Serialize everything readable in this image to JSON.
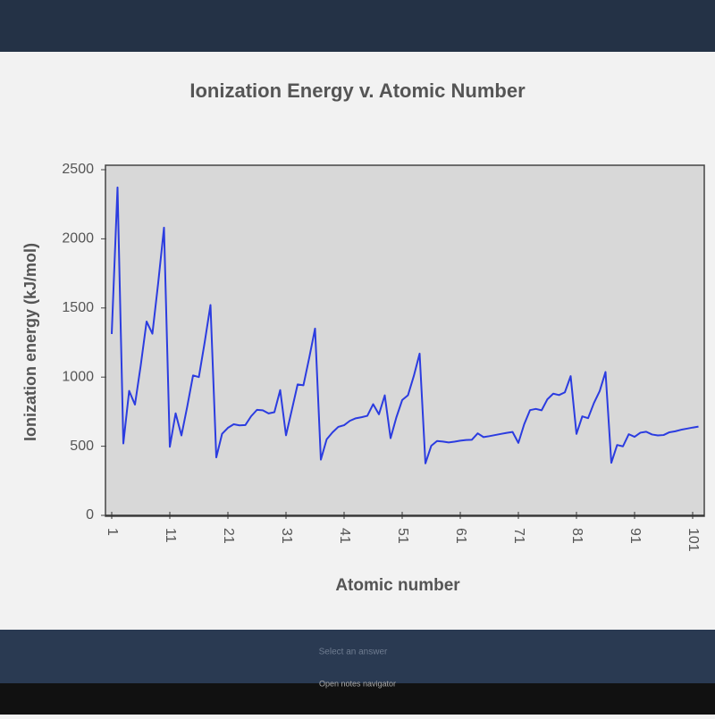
{
  "chart_data": {
    "type": "line",
    "title": "Ionization Energy v. Atomic Number",
    "x_label": "Atomic number",
    "y_label": "Ionization energy (kJ/mol)",
    "x": [
      1,
      2,
      3,
      4,
      5,
      6,
      7,
      8,
      9,
      10,
      11,
      12,
      13,
      14,
      15,
      16,
      17,
      18,
      19,
      20,
      21,
      22,
      23,
      24,
      25,
      26,
      27,
      28,
      29,
      30,
      31,
      32,
      33,
      34,
      35,
      36,
      37,
      38,
      39,
      40,
      41,
      42,
      43,
      44,
      45,
      46,
      47,
      48,
      49,
      50,
      51,
      52,
      53,
      54,
      55,
      56,
      57,
      58,
      59,
      60,
      61,
      62,
      63,
      64,
      65,
      66,
      67,
      68,
      69,
      70,
      71,
      72,
      73,
      74,
      75,
      76,
      77,
      78,
      79,
      80,
      81,
      82,
      83,
      84,
      85,
      86,
      87,
      88,
      89,
      90,
      91,
      92,
      93,
      94,
      95,
      96,
      97,
      98,
      99,
      100,
      101,
      102
    ],
    "series": [
      {
        "name": "Ionization energy",
        "color": "#2b3ce0",
        "values": [
          1312,
          2372,
          520,
          900,
          801,
          1086,
          1402,
          1314,
          1681,
          2081,
          496,
          738,
          578,
          787,
          1012,
          1000,
          1251,
          1521,
          419,
          590,
          633,
          659,
          651,
          653,
          717,
          763,
          760,
          737,
          746,
          906,
          579,
          762,
          947,
          941,
          1140,
          1351,
          403,
          550,
          600,
          640,
          652,
          684,
          702,
          710,
          720,
          804,
          731,
          868,
          558,
          709,
          834,
          869,
          1008,
          1170,
          376,
          503,
          538,
          534,
          527,
          533,
          540,
          545,
          547,
          593,
          566,
          573,
          581,
          589,
          597,
          603,
          524,
          659,
          761,
          770,
          760,
          840,
          880,
          870,
          890,
          1007,
          589,
          716,
          703,
          812,
          899,
          1037,
          380,
          509,
          499,
          587,
          568,
          598,
          605,
          585,
          578,
          581,
          601,
          608,
          619,
          627,
          635,
          642
        ]
      }
    ],
    "xlim": [
      1,
      103
    ],
    "xticks": [
      1,
      11,
      21,
      31,
      41,
      51,
      61,
      71,
      81,
      91,
      101
    ],
    "ylim": [
      0,
      2500
    ],
    "yticks": [
      0,
      500,
      1000,
      1500,
      2000,
      2500
    ],
    "grid": false,
    "plot_background": "#d8d8d8"
  },
  "footer": {
    "prompt": "Select an answer",
    "navigator": "Open notes navigator"
  }
}
